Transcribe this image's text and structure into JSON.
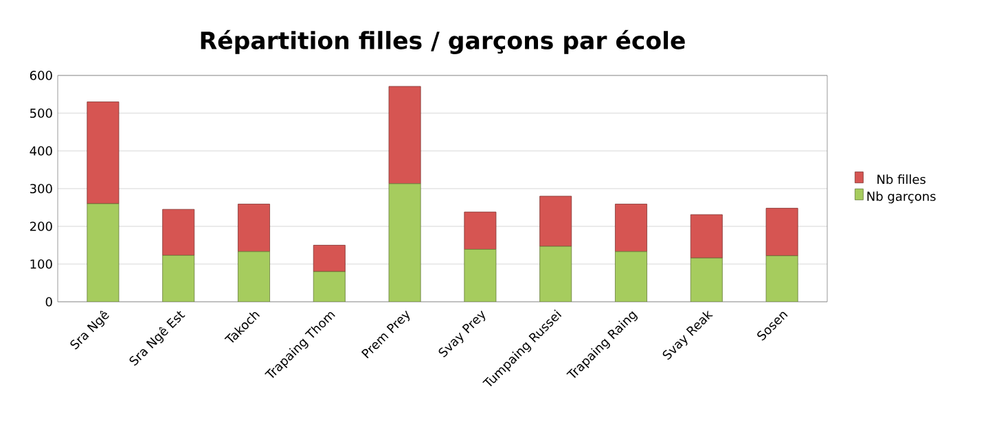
{
  "chart_data": {
    "type": "bar",
    "title": "Répartition filles / garçons par école",
    "categories": [
      "Sra Ngê",
      "Sra Ngê Est",
      "Takoch",
      "Trapaing Thom",
      "Prem Prey",
      "Svay Prey",
      "Tumpaing Russei",
      "Trapaing Raing",
      "Svay Reak",
      "Sosen"
    ],
    "series": [
      {
        "name": "Nb garçons",
        "color": "#a6cc5e",
        "values": [
          260,
          123,
          133,
          80,
          313,
          139,
          147,
          133,
          116,
          122
        ]
      },
      {
        "name": "Nb filles",
        "color": "#d65552",
        "values": [
          270,
          122,
          126,
          70,
          258,
          99,
          133,
          126,
          115,
          126
        ]
      }
    ],
    "stacked": true,
    "ylim": [
      0,
      600
    ],
    "yticks": [
      0,
      100,
      200,
      300,
      400,
      500,
      600
    ],
    "grid": "y",
    "legend": "right"
  }
}
